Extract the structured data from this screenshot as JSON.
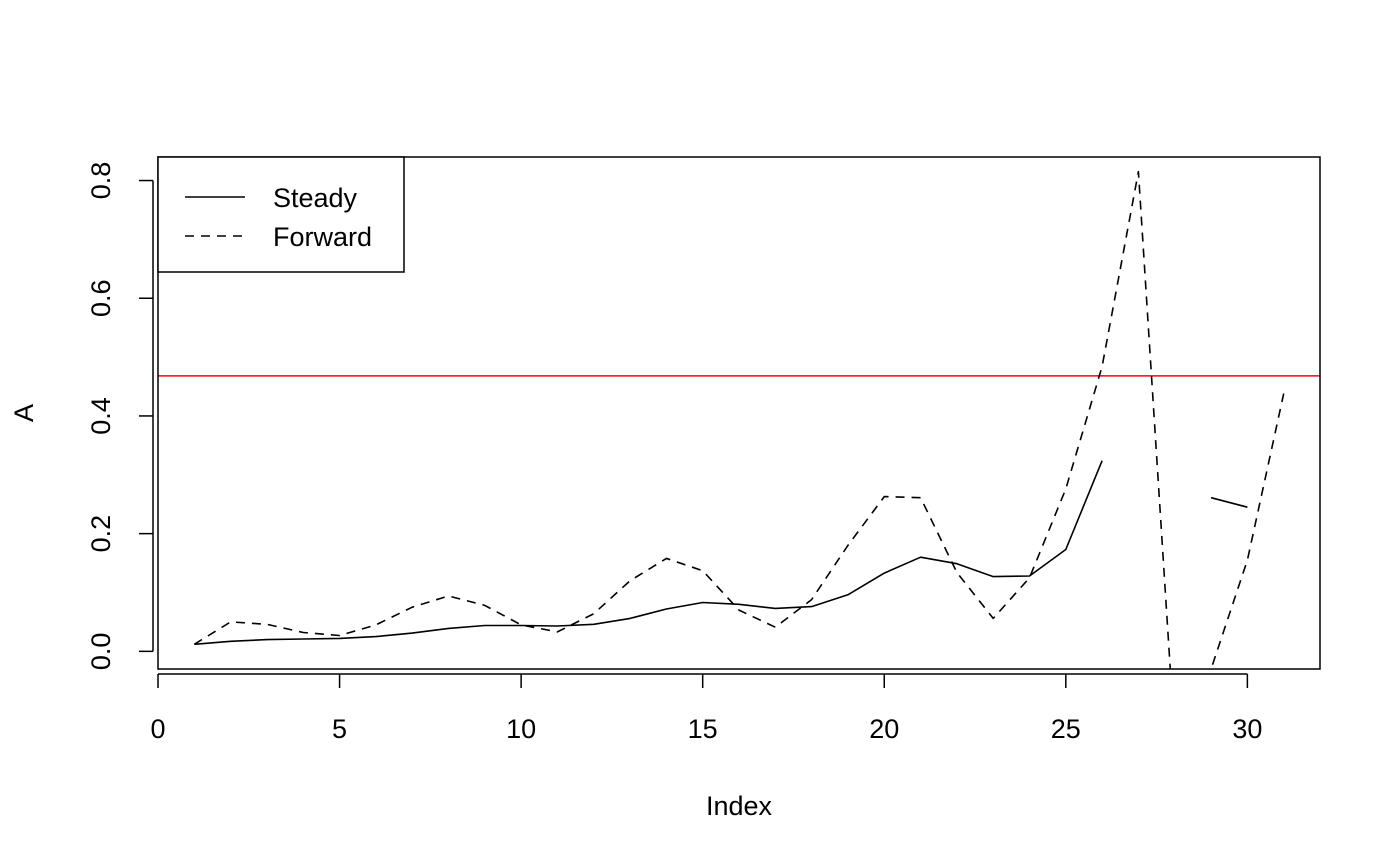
{
  "chart_data": {
    "type": "line",
    "title": "",
    "xlabel": "Index",
    "ylabel": "A",
    "xlim": [
      0,
      32
    ],
    "ylim": [
      -0.03,
      0.84
    ],
    "x_ticks": [
      0,
      5,
      10,
      15,
      20,
      25,
      30
    ],
    "y_ticks": [
      0.0,
      0.2,
      0.4,
      0.6,
      0.8
    ],
    "y_tick_labels": [
      "0.0",
      "0.2",
      "0.4",
      "0.6",
      "0.8"
    ],
    "grid": false,
    "legend": {
      "position": "top-left",
      "entries": [
        "Steady",
        "Forward"
      ]
    },
    "reference_line": {
      "y": 0.468,
      "color": "#ff0000"
    },
    "series": [
      {
        "name": "Steady",
        "style": "solid",
        "color": "#000000",
        "x": [
          1,
          2,
          3,
          4,
          5,
          6,
          7,
          8,
          9,
          10,
          11,
          12,
          13,
          14,
          15,
          16,
          17,
          18,
          19,
          20,
          21,
          22,
          23,
          24,
          25,
          26,
          27,
          28,
          29,
          30,
          31
        ],
        "y": [
          0.012,
          0.017,
          0.02,
          0.021,
          0.022,
          0.025,
          0.031,
          0.039,
          0.044,
          0.044,
          0.043,
          0.046,
          0.056,
          0.072,
          0.083,
          0.08,
          0.073,
          0.076,
          0.096,
          0.133,
          0.16,
          0.149,
          0.127,
          0.128,
          0.173,
          0.324,
          null,
          null,
          0.261,
          0.245,
          null
        ]
      },
      {
        "name": "Forward",
        "style": "dashed",
        "color": "#000000",
        "x": [
          1,
          2,
          3,
          4,
          5,
          6,
          7,
          8,
          9,
          10,
          11,
          12,
          13,
          14,
          15,
          16,
          17,
          18,
          19,
          20,
          21,
          22,
          23,
          24,
          25,
          26,
          27,
          28,
          29,
          30,
          31
        ],
        "y": [
          0.012,
          0.05,
          0.046,
          0.032,
          0.027,
          0.045,
          0.075,
          0.094,
          0.078,
          0.045,
          0.033,
          0.064,
          0.12,
          0.158,
          0.137,
          0.07,
          0.041,
          0.088,
          0.18,
          0.263,
          0.261,
          0.134,
          0.056,
          0.125,
          0.276,
          0.484,
          0.815,
          -0.15,
          -0.03,
          0.155,
          0.438
        ]
      }
    ]
  }
}
